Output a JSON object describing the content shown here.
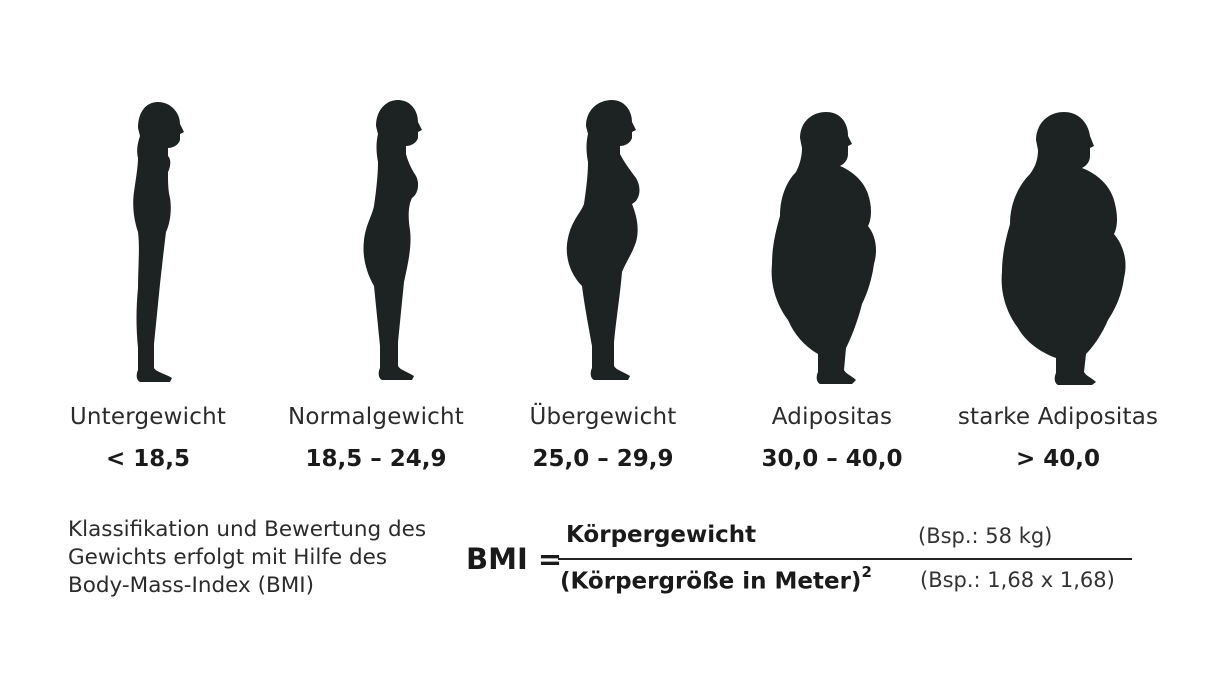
{
  "categories": [
    {
      "label": "Untergewicht",
      "range": "< 18,5"
    },
    {
      "label": "Normalgewicht",
      "range": "18,5 – 24,9"
    },
    {
      "label": "Übergewicht",
      "range": "25,0 – 29,9"
    },
    {
      "label": "Adipositas",
      "range": "30,0 – 40,0"
    },
    {
      "label": "starke Adipositas",
      "range": "> 40,0"
    }
  ],
  "description": "Klassifikation und Bewertung des Gewichts erfolgt mit Hilfe des Body-Mass-Index (BMI)",
  "formula": {
    "lhs": "BMI =",
    "numerator": "Körpergewicht",
    "denominator": "(Körpergröße in Meter)",
    "exponent": "2",
    "numerator_example": "(Bsp.: 58 kg)",
    "denominator_example": "(Bsp.: 1,68 x 1,68)"
  },
  "colors": {
    "silhouette": "#1c2322",
    "text": "#1a1a1a"
  }
}
